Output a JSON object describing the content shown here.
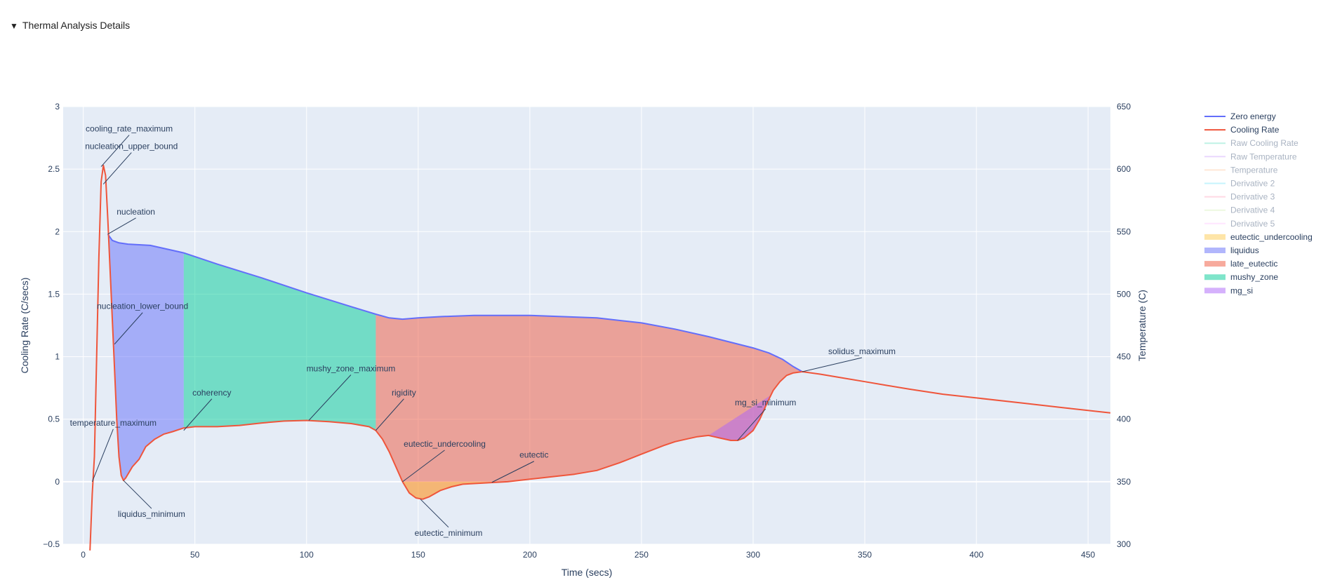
{
  "details": {
    "label": "Thermal Analysis Details",
    "arrow": "▼"
  },
  "chart_data": {
    "type": "line",
    "xlabel": "Time (secs)",
    "ylabel": "Cooling Rate (C/secs)",
    "y2label": "Temperature (C)",
    "xlim": [
      -9,
      460
    ],
    "ylim": [
      -0.5,
      3
    ],
    "y2lim": [
      300,
      650
    ],
    "xticks": [
      0,
      50,
      100,
      150,
      200,
      250,
      300,
      350,
      400,
      450
    ],
    "yticks": [
      -0.5,
      0,
      0.5,
      1,
      1.5,
      2,
      2.5,
      3
    ],
    "y2ticks": [
      300,
      350,
      400,
      450,
      500,
      550,
      600,
      650
    ],
    "ytick_labels": [
      "−0.5",
      "0",
      "0.5",
      "1",
      "1.5",
      "2",
      "2.5",
      "3"
    ],
    "grid": true,
    "legend_position": "right",
    "series": [
      {
        "name": "Zero energy",
        "color": "#636efa",
        "visible": true,
        "x": [
          11,
          13,
          16,
          20,
          30,
          40,
          45,
          60,
          80,
          100,
          120,
          131,
          137,
          143,
          150,
          160,
          175,
          200,
          230,
          250,
          265,
          280,
          300,
          307,
          313,
          318,
          322
        ],
        "y": [
          1.98,
          1.93,
          1.91,
          1.9,
          1.89,
          1.85,
          1.83,
          1.74,
          1.63,
          1.51,
          1.4,
          1.34,
          1.31,
          1.3,
          1.31,
          1.32,
          1.33,
          1.33,
          1.31,
          1.27,
          1.22,
          1.16,
          1.07,
          1.03,
          0.98,
          0.92,
          0.88
        ]
      },
      {
        "name": "Cooling Rate",
        "color": "#ef553b",
        "visible": true,
        "x": [
          3,
          4,
          5,
          6,
          7,
          8,
          9,
          10,
          11,
          12,
          13,
          14,
          15,
          16,
          17,
          18,
          19,
          22,
          25,
          28,
          32,
          36,
          40,
          45,
          50,
          55,
          60,
          65,
          70,
          80,
          90,
          100,
          110,
          120,
          128,
          131,
          134,
          137,
          140,
          143,
          146,
          149,
          152,
          155,
          160,
          165,
          170,
          180,
          190,
          200,
          210,
          220,
          230,
          240,
          250,
          260,
          265,
          270,
          275,
          280,
          285,
          290,
          293,
          296,
          300,
          303,
          306,
          309,
          312,
          315,
          318,
          322,
          330,
          340,
          350,
          360,
          370,
          385,
          400,
          420,
          440,
          460
        ],
        "y": [
          -0.55,
          -0.1,
          0.2,
          1.0,
          1.8,
          2.4,
          2.53,
          2.45,
          2.1,
          1.7,
          1.3,
          0.9,
          0.5,
          0.2,
          0.05,
          0.01,
          0.03,
          0.12,
          0.18,
          0.28,
          0.34,
          0.38,
          0.4,
          0.43,
          0.44,
          0.44,
          0.44,
          0.445,
          0.45,
          0.47,
          0.485,
          0.49,
          0.48,
          0.465,
          0.44,
          0.41,
          0.34,
          0.24,
          0.12,
          0.0,
          -0.09,
          -0.13,
          -0.14,
          -0.12,
          -0.07,
          -0.04,
          -0.02,
          -0.01,
          0.0,
          0.02,
          0.04,
          0.06,
          0.09,
          0.15,
          0.22,
          0.29,
          0.32,
          0.34,
          0.36,
          0.37,
          0.35,
          0.33,
          0.33,
          0.35,
          0.41,
          0.5,
          0.62,
          0.73,
          0.8,
          0.85,
          0.87,
          0.88,
          0.86,
          0.83,
          0.8,
          0.77,
          0.74,
          0.7,
          0.67,
          0.63,
          0.59,
          0.55
        ]
      },
      {
        "name": "Raw Cooling Rate",
        "color": "#00cc96",
        "visible": false
      },
      {
        "name": "Raw Temperature",
        "color": "#ab63fa",
        "visible": false
      },
      {
        "name": "Temperature",
        "color": "#ffa15a",
        "visible": false
      },
      {
        "name": "Derivative 2",
        "color": "#19d3f3",
        "visible": false
      },
      {
        "name": "Derivative 3",
        "color": "#ff6692",
        "visible": false
      },
      {
        "name": "Derivative 4",
        "color": "#b6e880",
        "visible": false
      },
      {
        "name": "Derivative 5",
        "color": "#ff97ff",
        "visible": false
      }
    ],
    "regions": [
      {
        "name": "eutectic_undercooling",
        "color": "#fecb52",
        "x_range": [
          143,
          183
        ]
      },
      {
        "name": "liquidus",
        "color": "#636efa",
        "x_range": [
          11,
          45
        ]
      },
      {
        "name": "late_eutectic",
        "color": "#ef553b",
        "x_range": [
          131,
          322
        ]
      },
      {
        "name": "mushy_zone",
        "color": "#00cc96",
        "x_range": [
          45,
          131
        ]
      },
      {
        "name": "mg_si",
        "color": "#ab63fa",
        "x_range": [
          280,
          308
        ]
      }
    ],
    "annotations": [
      {
        "text": "cooling_rate_maximum",
        "x": 8,
        "y": 2.52
      },
      {
        "text": "nucleation_upper_bound",
        "x": 9,
        "y": 2.38
      },
      {
        "text": "nucleation",
        "x": 11,
        "y": 1.98
      },
      {
        "text": "nucleation_lower_bound",
        "x": 14,
        "y": 1.1
      },
      {
        "text": "temperature_maximum",
        "x": 4,
        "y": 0.0
      },
      {
        "text": "liquidus_minimum",
        "x": 18,
        "y": 0.01
      },
      {
        "text": "coherency",
        "x": 45,
        "y": 0.41
      },
      {
        "text": "mushy_zone_maximum",
        "x": 101,
        "y": 0.49
      },
      {
        "text": "rigidity",
        "x": 131,
        "y": 0.41
      },
      {
        "text": "eutectic_undercooling",
        "x": 143,
        "y": 0.0
      },
      {
        "text": "eutectic",
        "x": 183,
        "y": -0.005
      },
      {
        "text": "eutectic_minimum",
        "x": 151,
        "y": -0.14
      },
      {
        "text": "mg_si_minimum",
        "x": 293,
        "y": 0.33
      },
      {
        "text": "solidus_maximum",
        "x": 322,
        "y": 0.88
      }
    ]
  }
}
